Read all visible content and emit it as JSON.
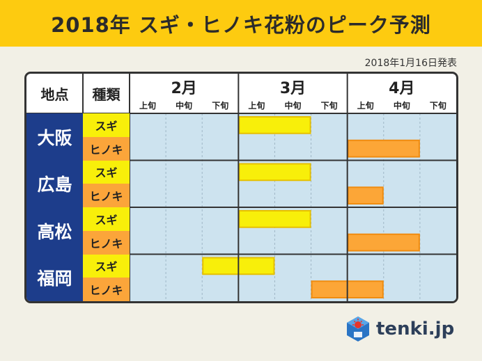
{
  "title": "2018年 スギ・ヒノキ花粉のピーク予測",
  "announcement": "2018年1月16日発表",
  "table_headers": {
    "location": "地点",
    "type": "種類"
  },
  "months": [
    "2月",
    "3月",
    "4月"
  ],
  "dekads": [
    "上旬",
    "中旬",
    "下旬"
  ],
  "colors": {
    "sugi_bar": "#f8ef0a",
    "sugi_bar_border": "#e6c000",
    "hinoki_bar": "#fca637",
    "hinoki_bar_border": "#f08c10",
    "sugi_label_bg": "#f8ef0a",
    "hinoki_label_bg": "#fba53a",
    "region_bg": "#1d3d8b",
    "chart_bg": "#cde3ef"
  },
  "chart_data": {
    "type": "gantt",
    "title": "2018年 スギ・ヒノキ花粉のピーク予測",
    "periods": [
      "2月上旬",
      "2月中旬",
      "2月下旬",
      "3月上旬",
      "3月中旬",
      "3月下旬",
      "4月上旬",
      "4月中旬",
      "4月下旬"
    ],
    "rows": [
      {
        "location": "大阪",
        "type": "スギ",
        "peak": [
          "3月上旬",
          "3月中旬"
        ]
      },
      {
        "location": "大阪",
        "type": "ヒノキ",
        "peak": [
          "4月上旬",
          "4月中旬"
        ]
      },
      {
        "location": "広島",
        "type": "スギ",
        "peak": [
          "3月上旬",
          "3月中旬"
        ]
      },
      {
        "location": "広島",
        "type": "ヒノキ",
        "peak": [
          "4月上旬",
          "4月上旬"
        ]
      },
      {
        "location": "高松",
        "type": "スギ",
        "peak": [
          "3月上旬",
          "3月中旬"
        ]
      },
      {
        "location": "高松",
        "type": "ヒノキ",
        "peak": [
          "4月上旬",
          "4月中旬"
        ]
      },
      {
        "location": "福岡",
        "type": "スギ",
        "peak": [
          "2月下旬",
          "3月上旬"
        ]
      },
      {
        "location": "福岡",
        "type": "ヒノキ",
        "peak": [
          "3月下旬",
          "4月上旬"
        ]
      }
    ],
    "regions": [
      "大阪",
      "広島",
      "高松",
      "福岡"
    ],
    "types": [
      "スギ",
      "ヒノキ"
    ]
  },
  "logo": {
    "text": "tenki.jp",
    "icon": "tenki-logo-icon"
  }
}
